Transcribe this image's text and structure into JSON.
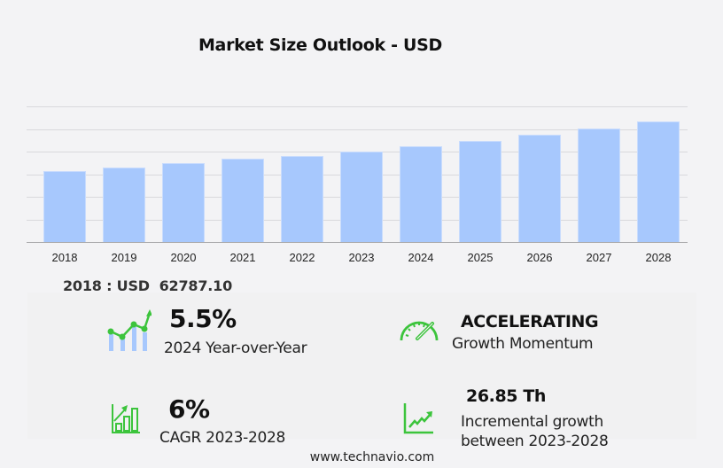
{
  "header": {
    "title": "Market Size Outlook  - USD"
  },
  "chart_data": {
    "type": "bar",
    "title": "Market Size Outlook - USD",
    "xlabel": "",
    "ylabel": "",
    "categories": [
      "2018",
      "2019",
      "2020",
      "2021",
      "2022",
      "2023",
      "2024",
      "2025",
      "2026",
      "2027",
      "2028"
    ],
    "values": [
      62787.1,
      66200,
      69900,
      73700,
      76100,
      80000,
      84400,
      89500,
      94800,
      100500,
      106850
    ],
    "ylim": [
      0,
      120000
    ],
    "grid": true,
    "y_tick_labels_visible": false,
    "bar_color": "#a7c8fd"
  },
  "summary": {
    "base_year_label": "2018 : USD  62787.10",
    "yoy": {
      "value": "5.5%",
      "label": "2024 Year-over-Year",
      "icon": "growth-chart-icon"
    },
    "momentum": {
      "value": "ACCELERATING",
      "label": "Growth Momentum",
      "icon": "speedometer-icon"
    },
    "cagr": {
      "value": "6%",
      "label": "CAGR 2023-2028",
      "icon": "bar-growth-icon"
    },
    "incremental": {
      "value": "26.85 Th",
      "label_line1": "Incremental growth",
      "label_line2": "between 2023-2028",
      "icon": "trend-line-icon"
    }
  },
  "colors": {
    "accent_green": "#3cc43c",
    "bar_blue": "#a7c8fd"
  },
  "footer": {
    "source": "www.technavio.com"
  }
}
